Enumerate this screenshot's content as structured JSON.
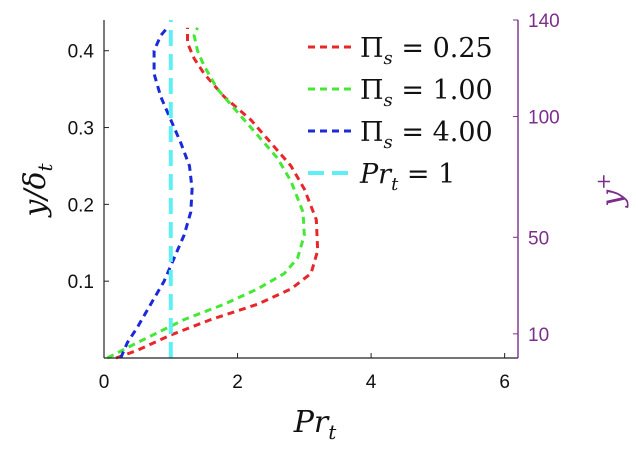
{
  "chart_data": {
    "type": "line",
    "xlabel": "Pr_t",
    "ylabel": "y/δ_t",
    "y2label": "y+",
    "xlim": [
      0,
      6.2
    ],
    "ylim": [
      0,
      0.44
    ],
    "xticks": [
      0,
      2,
      4,
      6
    ],
    "yticks": [
      0.1,
      0.2,
      0.3,
      0.4
    ],
    "y2lim": [
      0,
      140
    ],
    "y2ticks": [
      10,
      50,
      100,
      140
    ],
    "grid": false,
    "legend_position": "top-right",
    "series": [
      {
        "name": "Π_s = 0.25",
        "label_parts": [
          "Π",
          "s",
          " = 0.25"
        ],
        "color": "#e8272a",
        "style": "dashed",
        "x": [
          0.18,
          0.5,
          1.0,
          1.6,
          2.3,
          2.8,
          3.1,
          3.2,
          3.18,
          3.0,
          2.8,
          2.5,
          2.2,
          1.8,
          1.5,
          1.35,
          1.25,
          1.25
        ],
        "y": [
          0.0,
          0.01,
          0.03,
          0.05,
          0.07,
          0.09,
          0.11,
          0.14,
          0.18,
          0.22,
          0.25,
          0.28,
          0.31,
          0.34,
          0.37,
          0.39,
          0.41,
          0.43
        ]
      },
      {
        "name": "Π_s = 1.00",
        "label_parts": [
          "Π",
          "s",
          " = 1.00"
        ],
        "color": "#44e835",
        "style": "dashed",
        "x": [
          0.05,
          0.5,
          1.2,
          1.8,
          2.3,
          2.7,
          2.9,
          3.0,
          2.98,
          2.8,
          2.6,
          2.3,
          2.0,
          1.7,
          1.5,
          1.4,
          1.35,
          1.4
        ],
        "y": [
          0.0,
          0.02,
          0.05,
          0.07,
          0.09,
          0.11,
          0.13,
          0.16,
          0.19,
          0.23,
          0.26,
          0.29,
          0.32,
          0.35,
          0.38,
          0.4,
          0.42,
          0.43
        ]
      },
      {
        "name": "Π_s = 4.00",
        "label_parts": [
          "Π",
          "s",
          " = 4.00"
        ],
        "color": "#1a2ad8",
        "style": "dashed",
        "x": [
          0.25,
          0.35,
          0.5,
          0.7,
          0.9,
          1.05,
          1.2,
          1.3,
          1.32,
          1.28,
          1.15,
          1.0,
          0.85,
          0.75,
          0.75,
          0.85,
          0.95
        ],
        "y": [
          0.0,
          0.02,
          0.04,
          0.07,
          0.1,
          0.13,
          0.16,
          0.19,
          0.22,
          0.25,
          0.28,
          0.31,
          0.34,
          0.37,
          0.4,
          0.42,
          0.43
        ]
      },
      {
        "name": "Pr_t = 1",
        "label_parts": [
          "Pr",
          "t",
          " = 1"
        ],
        "color": "#5ff0f5",
        "style": "dashed",
        "x": [
          1.0,
          1.0
        ],
        "y": [
          0.0,
          0.44
        ]
      }
    ]
  }
}
